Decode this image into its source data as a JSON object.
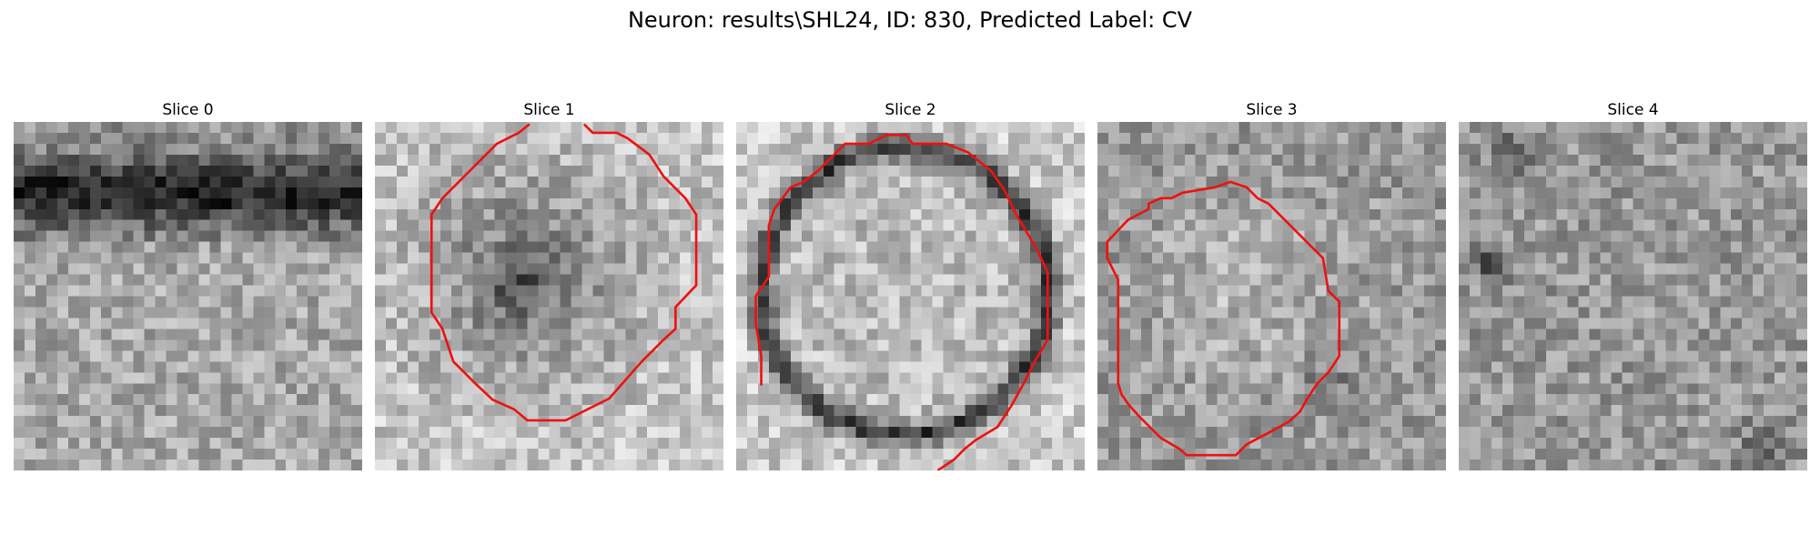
{
  "figure": {
    "title": "Neuron: results\\SHL24, ID: 830, Predicted Label: CV"
  },
  "panels": [
    {
      "title": "Slice 0",
      "has_contour": false
    },
    {
      "title": "Slice 1",
      "has_contour": true
    },
    {
      "title": "Slice 2",
      "has_contour": true
    },
    {
      "title": "Slice 3",
      "has_contour": true
    },
    {
      "title": "Slice 4",
      "has_contour": false
    }
  ],
  "colors": {
    "contour": "#ee1111",
    "background": "#ffffff"
  }
}
